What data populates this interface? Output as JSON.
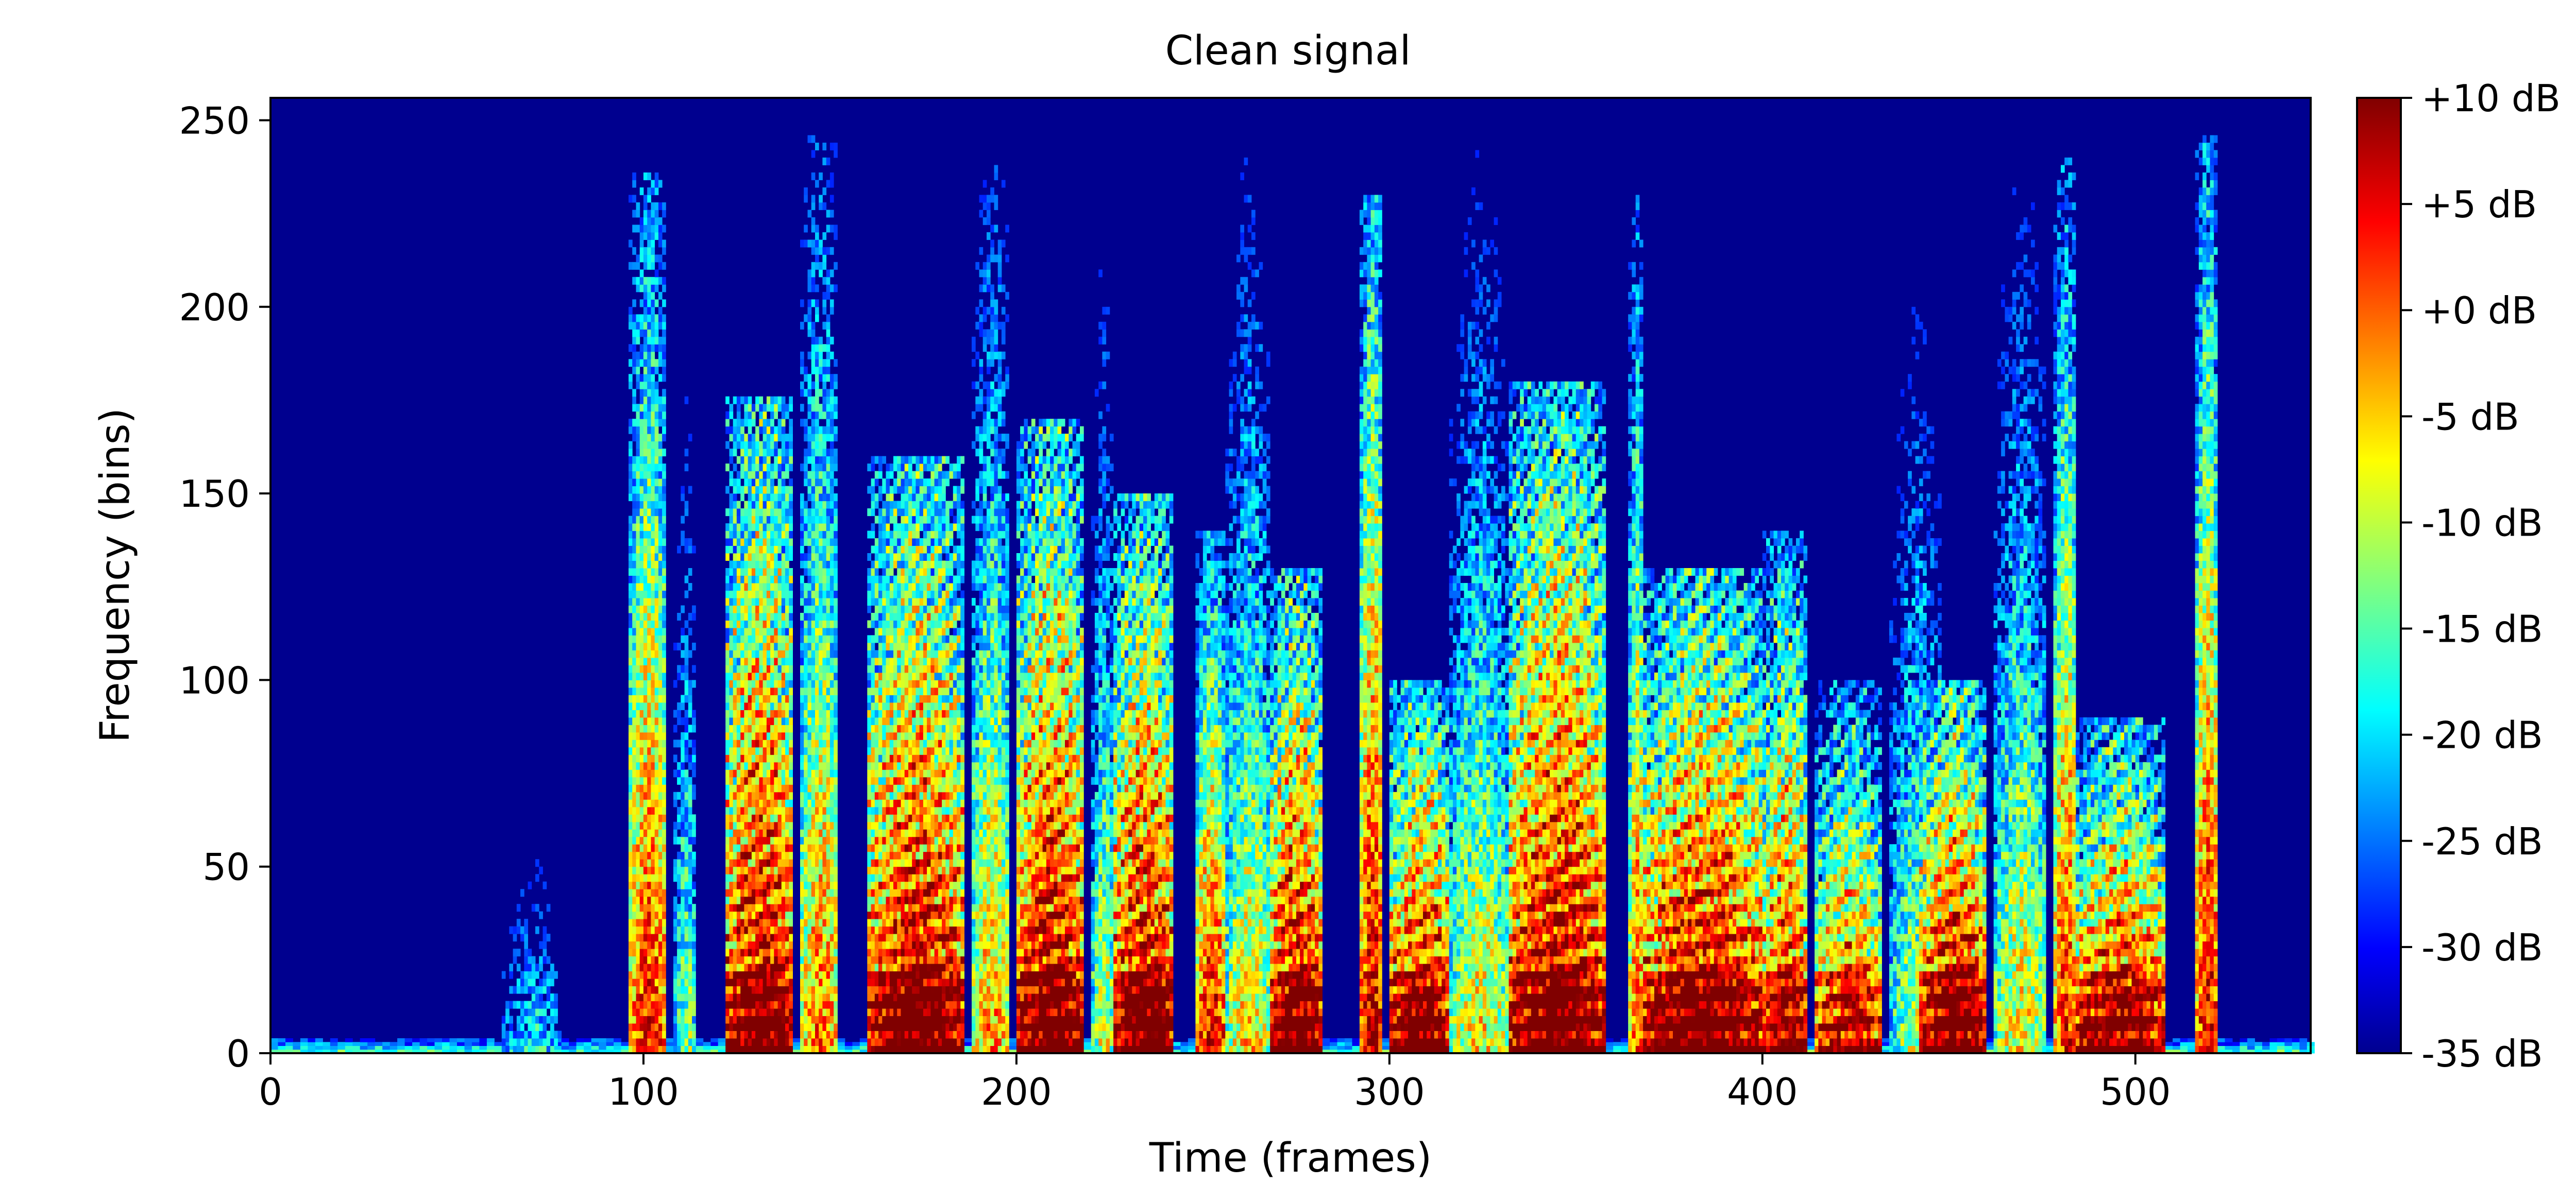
{
  "chart_data": {
    "type": "heatmap",
    "title": "Clean signal",
    "xlabel": "Time (frames)",
    "ylabel": "Frequency (bins)",
    "xlim": [
      0,
      547
    ],
    "ylim": [
      0,
      256
    ],
    "x_ticks": [
      0,
      100,
      200,
      300,
      400,
      500
    ],
    "y_ticks": [
      0,
      50,
      100,
      150,
      200,
      250
    ],
    "colormap": "jet",
    "colorbar": {
      "vmin": -35,
      "vmax": 10,
      "unit": "dB",
      "tick_values": [
        10,
        5,
        0,
        -5,
        -10,
        -15,
        -20,
        -25,
        -30,
        -35
      ],
      "tick_labels": [
        "+10 dB",
        "+5 dB",
        "+0 dB",
        "-5 dB",
        "-10 dB",
        "-15 dB",
        "-20 dB",
        "-25 dB",
        "-30 dB",
        "-35 dB"
      ]
    },
    "grid": false,
    "segments": [
      {
        "t_start": 62,
        "t_end": 78,
        "f_max": 90,
        "peak_db": -18,
        "harmonic": false
      },
      {
        "t_start": 96,
        "t_end": 106,
        "f_max": 235,
        "peak_db": 4,
        "harmonic": false
      },
      {
        "t_start": 108,
        "t_end": 114,
        "f_max": 225,
        "peak_db": -12,
        "harmonic": false
      },
      {
        "t_start": 122,
        "t_end": 140,
        "f_max": 175,
        "peak_db": 10,
        "harmonic": true
      },
      {
        "t_start": 142,
        "t_end": 152,
        "f_max": 245,
        "peak_db": 0,
        "harmonic": false
      },
      {
        "t_start": 160,
        "t_end": 186,
        "f_max": 160,
        "peak_db": 10,
        "harmonic": true
      },
      {
        "t_start": 188,
        "t_end": 198,
        "f_max": 240,
        "peak_db": -2,
        "harmonic": false
      },
      {
        "t_start": 200,
        "t_end": 218,
        "f_max": 170,
        "peak_db": 10,
        "harmonic": true
      },
      {
        "t_start": 220,
        "t_end": 226,
        "f_max": 240,
        "peak_db": -8,
        "harmonic": false
      },
      {
        "t_start": 226,
        "t_end": 242,
        "f_max": 150,
        "peak_db": 10,
        "harmonic": true
      },
      {
        "t_start": 248,
        "t_end": 256,
        "f_max": 140,
        "peak_db": 6,
        "harmonic": false
      },
      {
        "t_start": 256,
        "t_end": 268,
        "f_max": 245,
        "peak_db": -5,
        "harmonic": false
      },
      {
        "t_start": 268,
        "t_end": 282,
        "f_max": 130,
        "peak_db": 10,
        "harmonic": true
      },
      {
        "t_start": 292,
        "t_end": 298,
        "f_max": 230,
        "peak_db": 8,
        "harmonic": false
      },
      {
        "t_start": 300,
        "t_end": 316,
        "f_max": 100,
        "peak_db": 10,
        "harmonic": true
      },
      {
        "t_start": 316,
        "t_end": 332,
        "f_max": 245,
        "peak_db": -6,
        "harmonic": false
      },
      {
        "t_start": 332,
        "t_end": 358,
        "f_max": 180,
        "peak_db": 10,
        "harmonic": true
      },
      {
        "t_start": 364,
        "t_end": 368,
        "f_max": 230,
        "peak_db": 2,
        "harmonic": false
      },
      {
        "t_start": 368,
        "t_end": 400,
        "f_max": 130,
        "peak_db": 10,
        "harmonic": true
      },
      {
        "t_start": 400,
        "t_end": 412,
        "f_max": 140,
        "peak_db": 6,
        "harmonic": true
      },
      {
        "t_start": 414,
        "t_end": 432,
        "f_max": 100,
        "peak_db": 4,
        "harmonic": true
      },
      {
        "t_start": 434,
        "t_end": 448,
        "f_max": 240,
        "peak_db": -10,
        "harmonic": false
      },
      {
        "t_start": 442,
        "t_end": 460,
        "f_max": 100,
        "peak_db": 10,
        "harmonic": true
      },
      {
        "t_start": 462,
        "t_end": 476,
        "f_max": 245,
        "peak_db": -6,
        "harmonic": false
      },
      {
        "t_start": 478,
        "t_end": 484,
        "f_max": 240,
        "peak_db": 4,
        "harmonic": false
      },
      {
        "t_start": 484,
        "t_end": 508,
        "f_max": 90,
        "peak_db": 8,
        "harmonic": true
      },
      {
        "t_start": 516,
        "t_end": 522,
        "f_max": 245,
        "peak_db": 6,
        "harmonic": false
      }
    ]
  }
}
